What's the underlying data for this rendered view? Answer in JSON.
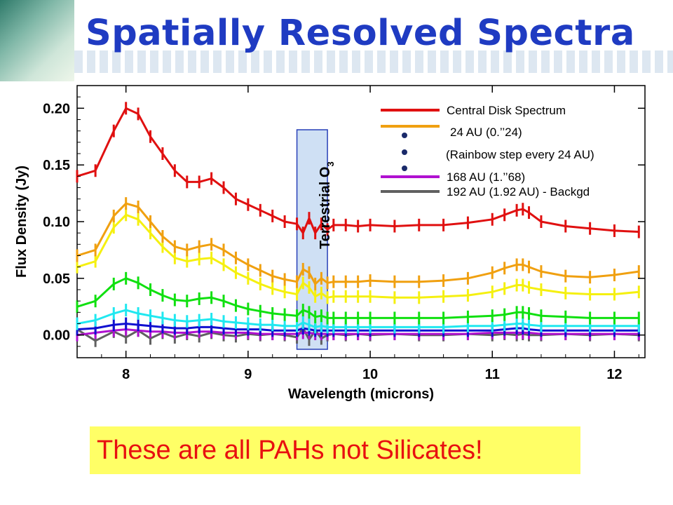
{
  "slide": {
    "title": "Spatially Resolved Spectra",
    "callout": "These are all PAHs not Silicates!"
  },
  "colors": {
    "title": "#1f3bc2",
    "callout_text": "#e81010",
    "callout_bg": "#ffff66",
    "ozone_band_fill": "#cfe0f4",
    "ozone_band_stroke": "#2840b8"
  },
  "chart_data": {
    "type": "line",
    "xlabel": "Wavelength (microns)",
    "ylabel": "Flux Density (Jy)",
    "xlim": [
      7.6,
      12.25
    ],
    "ylim": [
      -0.02,
      0.22
    ],
    "xticks": [
      8,
      9,
      10,
      11,
      12
    ],
    "yticks": [
      0.0,
      0.05,
      0.1,
      0.15,
      0.2
    ],
    "ytick_labels": [
      "0.00",
      "0.05",
      "0.10",
      "0.15",
      "0.20"
    ],
    "grid": false,
    "legend_position": "top-right",
    "x": [
      7.6,
      7.75,
      7.9,
      8.0,
      8.1,
      8.2,
      8.3,
      8.4,
      8.5,
      8.6,
      8.7,
      8.8,
      8.9,
      9.0,
      9.1,
      9.2,
      9.3,
      9.4,
      9.45,
      9.5,
      9.55,
      9.6,
      9.65,
      9.7,
      9.8,
      9.9,
      10.0,
      10.2,
      10.4,
      10.6,
      10.8,
      11.0,
      11.1,
      11.2,
      11.25,
      11.3,
      11.4,
      11.6,
      11.8,
      12.0,
      12.2
    ],
    "series": [
      {
        "name": "Central Disk Spectrum",
        "color": "#e01010",
        "values": [
          0.14,
          0.145,
          0.18,
          0.2,
          0.195,
          0.175,
          0.16,
          0.145,
          0.135,
          0.135,
          0.138,
          0.13,
          0.12,
          0.115,
          0.11,
          0.105,
          0.1,
          0.098,
          0.09,
          0.103,
          0.09,
          0.098,
          0.093,
          0.097,
          0.097,
          0.096,
          0.097,
          0.096,
          0.097,
          0.097,
          0.099,
          0.102,
          0.106,
          0.11,
          0.111,
          0.108,
          0.1,
          0.096,
          0.094,
          0.092,
          0.091
        ]
      },
      {
        "name": "24 AU (0.’’24)",
        "color": "#f0a010",
        "values": [
          0.07,
          0.075,
          0.105,
          0.116,
          0.113,
          0.1,
          0.087,
          0.078,
          0.075,
          0.078,
          0.08,
          0.075,
          0.068,
          0.062,
          0.057,
          0.052,
          0.049,
          0.047,
          0.058,
          0.055,
          0.045,
          0.05,
          0.046,
          0.047,
          0.047,
          0.047,
          0.048,
          0.047,
          0.047,
          0.048,
          0.05,
          0.055,
          0.059,
          0.062,
          0.062,
          0.06,
          0.056,
          0.052,
          0.051,
          0.053,
          0.056
        ]
      },
      {
        "name": "",
        "color": "#f5f010",
        "values": [
          0.06,
          0.065,
          0.095,
          0.106,
          0.102,
          0.09,
          0.078,
          0.068,
          0.065,
          0.067,
          0.068,
          0.062,
          0.055,
          0.05,
          0.045,
          0.041,
          0.038,
          0.036,
          0.046,
          0.042,
          0.034,
          0.037,
          0.033,
          0.034,
          0.034,
          0.034,
          0.034,
          0.033,
          0.033,
          0.034,
          0.035,
          0.038,
          0.041,
          0.044,
          0.044,
          0.042,
          0.04,
          0.037,
          0.036,
          0.036,
          0.038
        ]
      },
      {
        "name": "",
        "color": "#10e010",
        "values": [
          0.025,
          0.03,
          0.045,
          0.05,
          0.046,
          0.04,
          0.035,
          0.031,
          0.03,
          0.032,
          0.033,
          0.03,
          0.026,
          0.023,
          0.021,
          0.019,
          0.018,
          0.017,
          0.022,
          0.02,
          0.016,
          0.017,
          0.015,
          0.015,
          0.015,
          0.015,
          0.015,
          0.015,
          0.015,
          0.015,
          0.016,
          0.017,
          0.018,
          0.02,
          0.02,
          0.019,
          0.017,
          0.016,
          0.015,
          0.015,
          0.015
        ]
      },
      {
        "name": "",
        "color": "#20e8f0",
        "values": [
          0.01,
          0.013,
          0.019,
          0.022,
          0.019,
          0.017,
          0.015,
          0.013,
          0.012,
          0.013,
          0.014,
          0.012,
          0.011,
          0.01,
          0.009,
          0.009,
          0.008,
          0.008,
          0.011,
          0.009,
          0.007,
          0.008,
          0.007,
          0.007,
          0.007,
          0.007,
          0.007,
          0.007,
          0.007,
          0.007,
          0.008,
          0.008,
          0.009,
          0.01,
          0.01,
          0.009,
          0.008,
          0.008,
          0.008,
          0.008,
          0.008
        ]
      },
      {
        "name": "",
        "color": "#1010d0",
        "values": [
          0.005,
          0.006,
          0.009,
          0.01,
          0.009,
          0.008,
          0.007,
          0.006,
          0.006,
          0.007,
          0.007,
          0.006,
          0.005,
          0.005,
          0.005,
          0.004,
          0.004,
          0.004,
          0.006,
          0.005,
          0.004,
          0.004,
          0.004,
          0.004,
          0.004,
          0.004,
          0.004,
          0.004,
          0.004,
          0.004,
          0.004,
          0.004,
          0.005,
          0.006,
          0.006,
          0.005,
          0.004,
          0.004,
          0.004,
          0.004,
          0.004
        ]
      },
      {
        "name": "168 AU (1.’’68)",
        "color": "#b010d0",
        "values": [
          0.0,
          0.002,
          0.004,
          0.005,
          0.004,
          0.003,
          0.003,
          0.002,
          0.002,
          0.003,
          0.003,
          0.002,
          0.002,
          0.002,
          0.001,
          0.001,
          0.001,
          0.001,
          0.002,
          0.002,
          0.001,
          0.001,
          0.001,
          0.001,
          0.001,
          0.001,
          0.001,
          0.001,
          0.001,
          0.001,
          0.001,
          0.002,
          0.002,
          0.002,
          0.002,
          0.002,
          0.001,
          0.001,
          0.001,
          0.001,
          0.001
        ]
      },
      {
        "name": "192 AU (1.92 AU) - Backgd",
        "color": "#606060",
        "values": [
          0.005,
          -0.005,
          0.003,
          -0.002,
          0.004,
          -0.003,
          0.002,
          -0.002,
          0.001,
          -0.001,
          0.002,
          0.0,
          -0.001,
          0.001,
          0.0,
          0.001,
          0.0,
          -0.002,
          0.006,
          -0.004,
          0.004,
          -0.003,
          0.0,
          0.001,
          0.0,
          0.001,
          0.0,
          0.001,
          0.0,
          0.0,
          0.001,
          0.0,
          0.001,
          0.0,
          0.001,
          0.0,
          0.0,
          0.001,
          0.0,
          0.001,
          0.0
        ]
      }
    ],
    "legend_note": "(Rainbow step every 24 AU)",
    "annotations": [
      {
        "text": "Terrestrial O",
        "subscript": "3",
        "x_range": [
          9.4,
          9.65
        ]
      }
    ]
  }
}
